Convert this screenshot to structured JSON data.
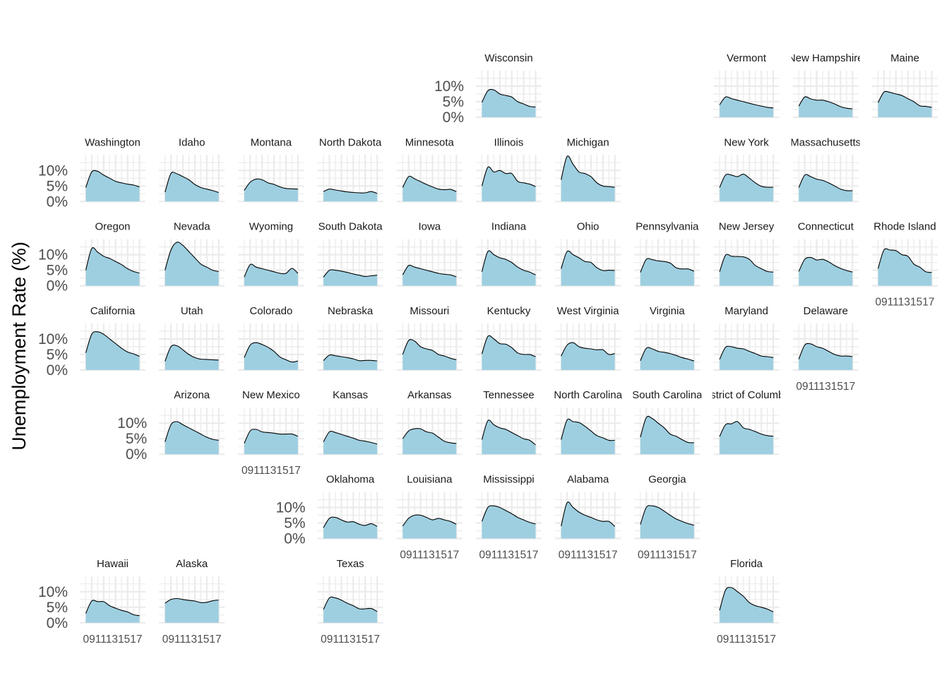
{
  "chart_data": {
    "type": "area",
    "subtype": "small-multiples-geofacet",
    "ylabel": "Unemployment Rate (%)",
    "xlabel": "",
    "y_ticks": [
      "0%",
      "5%",
      "10%"
    ],
    "ylim": [
      0,
      15
    ],
    "x_ticks": [
      "09",
      "11",
      "13",
      "15",
      "17"
    ],
    "xlim": [
      2007,
      2018
    ],
    "colors": {
      "fill": "#9ecfe0",
      "line": "#000000",
      "grid": "#ebebeb",
      "panel": "#ffffff"
    },
    "grid": true,
    "legend": "none",
    "panels": [
      {
        "name": "Wisconsin",
        "row": 0,
        "col": 5,
        "yaxis": true,
        "xaxis": false,
        "values": [
          4.8,
          8.5,
          8.8,
          7.5,
          7.0,
          6.5,
          5.0,
          4.3,
          3.5,
          3.3
        ]
      },
      {
        "name": "Vermont",
        "row": 0,
        "col": 8,
        "yaxis": false,
        "xaxis": false,
        "values": [
          4.0,
          6.5,
          6.0,
          5.5,
          5.0,
          4.5,
          4.0,
          3.6,
          3.2,
          3.0
        ]
      },
      {
        "name": "New Hampshire",
        "label": "New Hampshire",
        "row": 0,
        "col": 9,
        "yaxis": false,
        "xaxis": false,
        "values": [
          3.6,
          6.5,
          5.9,
          5.5,
          5.5,
          5.0,
          4.3,
          3.4,
          2.9,
          2.7
        ]
      },
      {
        "name": "Maine",
        "row": 0,
        "col": 10,
        "yaxis": false,
        "xaxis": false,
        "values": [
          4.7,
          8.1,
          8.0,
          7.5,
          7.0,
          6.0,
          5.0,
          3.7,
          3.5,
          3.2
        ]
      },
      {
        "name": "Washington",
        "row": 1,
        "col": 0,
        "yaxis": true,
        "xaxis": false,
        "values": [
          4.5,
          9.5,
          9.7,
          8.5,
          7.5,
          6.5,
          6.0,
          5.6,
          5.3,
          4.7
        ]
      },
      {
        "name": "Idaho",
        "row": 1,
        "col": 1,
        "yaxis": false,
        "xaxis": false,
        "values": [
          3.0,
          9.0,
          8.9,
          8.0,
          7.0,
          5.5,
          4.5,
          4.0,
          3.5,
          2.9
        ]
      },
      {
        "name": "Montana",
        "row": 1,
        "col": 2,
        "yaxis": false,
        "xaxis": false,
        "values": [
          3.6,
          6.2,
          7.2,
          7.0,
          6.0,
          5.5,
          4.7,
          4.2,
          4.1,
          4.0
        ]
      },
      {
        "name": "North Dakota",
        "row": 1,
        "col": 3,
        "yaxis": false,
        "xaxis": false,
        "values": [
          3.2,
          4.0,
          3.7,
          3.4,
          3.1,
          2.9,
          2.8,
          2.8,
          3.2,
          2.6
        ]
      },
      {
        "name": "Minnesota",
        "row": 1,
        "col": 4,
        "yaxis": false,
        "xaxis": false,
        "values": [
          4.5,
          8.0,
          7.3,
          6.4,
          5.5,
          4.7,
          4.0,
          3.8,
          3.9,
          3.2
        ]
      },
      {
        "name": "Illinois",
        "row": 1,
        "col": 5,
        "yaxis": false,
        "xaxis": false,
        "values": [
          5.0,
          11.0,
          9.5,
          10.0,
          9.0,
          9.0,
          6.5,
          6.0,
          5.6,
          4.8
        ]
      },
      {
        "name": "Michigan",
        "row": 1,
        "col": 6,
        "yaxis": false,
        "xaxis": false,
        "values": [
          7.0,
          14.5,
          12.0,
          9.5,
          9.0,
          8.0,
          6.0,
          5.0,
          4.8,
          4.6
        ]
      },
      {
        "name": "New York",
        "row": 1,
        "col": 8,
        "yaxis": false,
        "xaxis": false,
        "values": [
          4.5,
          8.5,
          8.5,
          8.0,
          8.8,
          7.5,
          6.0,
          4.9,
          4.6,
          4.6
        ]
      },
      {
        "name": "Massachusetts",
        "label": "Massachusetts",
        "row": 1,
        "col": 9,
        "yaxis": false,
        "xaxis": false,
        "values": [
          4.5,
          8.5,
          8.0,
          7.2,
          6.8,
          6.0,
          5.0,
          4.0,
          3.5,
          3.5
        ]
      },
      {
        "name": "Oregon",
        "row": 2,
        "col": 0,
        "yaxis": true,
        "xaxis": false,
        "values": [
          5.0,
          12.0,
          10.8,
          9.5,
          8.8,
          7.8,
          6.8,
          5.5,
          4.6,
          4.1
        ]
      },
      {
        "name": "Nevada",
        "row": 2,
        "col": 1,
        "yaxis": false,
        "xaxis": false,
        "values": [
          5.0,
          11.5,
          14.0,
          13.0,
          11.0,
          9.0,
          7.0,
          6.0,
          5.0,
          4.6
        ]
      },
      {
        "name": "Wyoming",
        "row": 2,
        "col": 2,
        "yaxis": false,
        "xaxis": false,
        "values": [
          2.8,
          6.8,
          6.0,
          5.5,
          5.0,
          4.5,
          4.0,
          4.0,
          5.6,
          4.0
        ]
      },
      {
        "name": "South Dakota",
        "row": 2,
        "col": 3,
        "yaxis": false,
        "xaxis": false,
        "values": [
          2.8,
          5.0,
          5.0,
          4.7,
          4.3,
          3.8,
          3.4,
          3.0,
          3.2,
          3.4
        ]
      },
      {
        "name": "Iowa",
        "row": 2,
        "col": 4,
        "yaxis": false,
        "xaxis": false,
        "values": [
          3.5,
          6.5,
          6.0,
          5.5,
          5.0,
          4.5,
          4.0,
          3.7,
          3.5,
          2.9
        ]
      },
      {
        "name": "Indiana",
        "row": 2,
        "col": 5,
        "yaxis": false,
        "xaxis": false,
        "values": [
          4.5,
          11.0,
          10.0,
          9.0,
          8.5,
          7.5,
          6.0,
          5.0,
          4.4,
          3.5
        ]
      },
      {
        "name": "Ohio",
        "row": 2,
        "col": 6,
        "yaxis": false,
        "xaxis": false,
        "values": [
          5.5,
          11.0,
          10.0,
          9.0,
          7.8,
          7.5,
          5.8,
          4.9,
          5.0,
          4.9
        ]
      },
      {
        "name": "Pennsylvania",
        "row": 2,
        "col": 7,
        "yaxis": false,
        "xaxis": false,
        "values": [
          4.3,
          8.5,
          8.4,
          8.0,
          7.8,
          7.3,
          5.8,
          5.4,
          5.4,
          4.7
        ]
      },
      {
        "name": "New Jersey",
        "row": 2,
        "col": 8,
        "yaxis": false,
        "xaxis": false,
        "values": [
          4.5,
          9.8,
          9.5,
          9.4,
          9.3,
          8.5,
          6.5,
          5.5,
          4.6,
          4.4
        ]
      },
      {
        "name": "Connecticut",
        "row": 2,
        "col": 9,
        "yaxis": false,
        "xaxis": false,
        "values": [
          4.6,
          8.5,
          9.1,
          8.3,
          8.5,
          7.7,
          6.5,
          5.6,
          4.9,
          4.4
        ]
      },
      {
        "name": "Rhode Island",
        "row": 2,
        "col": 10,
        "yaxis": false,
        "xaxis": true,
        "values": [
          5.5,
          11.5,
          11.5,
          11.3,
          10.0,
          9.5,
          7.0,
          6.0,
          4.5,
          4.3
        ]
      },
      {
        "name": "California",
        "row": 3,
        "col": 0,
        "yaxis": true,
        "xaxis": false,
        "values": [
          5.5,
          11.5,
          12.3,
          11.5,
          10.0,
          8.5,
          7.0,
          5.8,
          5.2,
          4.4
        ]
      },
      {
        "name": "Utah",
        "row": 3,
        "col": 1,
        "yaxis": false,
        "xaxis": false,
        "values": [
          2.8,
          7.5,
          7.8,
          6.5,
          5.0,
          4.0,
          3.5,
          3.4,
          3.3,
          3.2
        ]
      },
      {
        "name": "Colorado",
        "row": 3,
        "col": 2,
        "yaxis": false,
        "xaxis": false,
        "values": [
          4.0,
          8.0,
          8.8,
          8.2,
          7.3,
          6.0,
          4.2,
          3.3,
          2.6,
          2.9
        ]
      },
      {
        "name": "Nebraska",
        "row": 3,
        "col": 3,
        "yaxis": false,
        "xaxis": false,
        "values": [
          3.0,
          4.8,
          4.6,
          4.3,
          4.0,
          3.6,
          3.0,
          3.1,
          3.1,
          2.9
        ]
      },
      {
        "name": "Missouri",
        "row": 3,
        "col": 4,
        "yaxis": false,
        "xaxis": false,
        "values": [
          5.0,
          9.5,
          9.3,
          7.5,
          6.8,
          6.3,
          5.0,
          4.5,
          3.8,
          3.3
        ]
      },
      {
        "name": "Kentucky",
        "row": 3,
        "col": 5,
        "yaxis": false,
        "xaxis": false,
        "values": [
          5.2,
          10.8,
          10.0,
          8.5,
          8.3,
          7.2,
          5.5,
          5.0,
          5.0,
          4.3
        ]
      },
      {
        "name": "West Virginia",
        "row": 3,
        "col": 6,
        "yaxis": false,
        "xaxis": false,
        "values": [
          4.5,
          8.0,
          8.8,
          7.5,
          7.0,
          6.8,
          6.5,
          6.5,
          5.0,
          5.3
        ]
      },
      {
        "name": "Virginia",
        "row": 3,
        "col": 7,
        "yaxis": false,
        "xaxis": false,
        "values": [
          3.0,
          7.0,
          6.8,
          6.0,
          5.7,
          5.3,
          4.7,
          4.0,
          3.5,
          2.9
        ]
      },
      {
        "name": "Maryland",
        "row": 3,
        "col": 8,
        "yaxis": false,
        "xaxis": false,
        "values": [
          3.4,
          7.3,
          7.5,
          7.0,
          6.8,
          6.0,
          5.3,
          4.5,
          4.3,
          4.0
        ]
      },
      {
        "name": "Delaware",
        "row": 3,
        "col": 9,
        "yaxis": false,
        "xaxis": true,
        "values": [
          3.5,
          8.0,
          8.4,
          7.5,
          7.0,
          6.0,
          5.0,
          4.5,
          4.5,
          4.3
        ]
      },
      {
        "name": "Arizona",
        "row": 4,
        "col": 1,
        "yaxis": true,
        "xaxis": false,
        "values": [
          4.0,
          9.5,
          10.5,
          9.5,
          8.5,
          7.5,
          6.5,
          5.5,
          4.8,
          4.5
        ]
      },
      {
        "name": "New Mexico",
        "row": 4,
        "col": 2,
        "yaxis": false,
        "xaxis": true,
        "values": [
          3.5,
          7.5,
          8.0,
          7.2,
          7.0,
          6.8,
          6.5,
          6.5,
          6.5,
          5.8
        ]
      },
      {
        "name": "Kansas",
        "row": 4,
        "col": 3,
        "yaxis": false,
        "xaxis": false,
        "values": [
          4.0,
          7.2,
          7.0,
          6.4,
          5.8,
          5.2,
          4.5,
          4.2,
          3.8,
          3.3
        ]
      },
      {
        "name": "Arkansas",
        "row": 4,
        "col": 4,
        "yaxis": false,
        "xaxis": false,
        "values": [
          5.0,
          7.5,
          8.2,
          8.2,
          7.2,
          6.8,
          5.5,
          4.2,
          3.7,
          3.5
        ]
      },
      {
        "name": "Tennessee",
        "row": 4,
        "col": 5,
        "yaxis": false,
        "xaxis": false,
        "values": [
          4.7,
          10.8,
          9.5,
          8.5,
          8.0,
          7.0,
          6.0,
          5.0,
          4.5,
          3.0
        ]
      },
      {
        "name": "North Carolina",
        "label": "North Carolina",
        "row": 4,
        "col": 6,
        "yaxis": false,
        "xaxis": false,
        "values": [
          4.7,
          11.0,
          10.5,
          10.2,
          9.0,
          7.5,
          6.0,
          5.3,
          4.5,
          4.5
        ]
      },
      {
        "name": "South Carolina",
        "label": "South Carolina",
        "row": 4,
        "col": 7,
        "yaxis": false,
        "xaxis": false,
        "values": [
          5.5,
          11.8,
          11.5,
          10.0,
          8.5,
          6.5,
          5.8,
          4.7,
          3.8,
          3.7
        ]
      },
      {
        "name": "District of Columbia",
        "label": "District of Columbia",
        "row": 4,
        "col": 8,
        "yaxis": false,
        "xaxis": false,
        "values": [
          5.7,
          9.5,
          9.8,
          10.5,
          8.5,
          8.0,
          7.3,
          6.5,
          6.0,
          5.8
        ]
      },
      {
        "name": "Oklahoma",
        "row": 5,
        "col": 3,
        "yaxis": true,
        "xaxis": false,
        "values": [
          3.5,
          6.5,
          6.8,
          6.0,
          5.3,
          5.4,
          4.6,
          4.2,
          4.8,
          3.9
        ]
      },
      {
        "name": "Louisiana",
        "row": 5,
        "col": 4,
        "yaxis": false,
        "xaxis": true,
        "values": [
          4.0,
          6.5,
          7.5,
          7.5,
          6.8,
          6.0,
          6.5,
          6.0,
          5.5,
          4.6
        ]
      },
      {
        "name": "Mississippi",
        "row": 5,
        "col": 5,
        "yaxis": false,
        "xaxis": true,
        "values": [
          5.5,
          10.0,
          10.5,
          10.0,
          9.0,
          8.0,
          6.8,
          6.0,
          5.2,
          4.7
        ]
      },
      {
        "name": "Alabama",
        "row": 5,
        "col": 6,
        "yaxis": false,
        "xaxis": true,
        "values": [
          4.0,
          11.5,
          10.0,
          8.5,
          7.5,
          6.8,
          6.0,
          5.5,
          5.5,
          3.9
        ]
      },
      {
        "name": "Georgia",
        "row": 5,
        "col": 7,
        "yaxis": false,
        "xaxis": true,
        "values": [
          4.5,
          10.0,
          10.5,
          10.0,
          8.8,
          7.5,
          6.3,
          5.5,
          4.8,
          4.3
        ]
      },
      {
        "name": "Hawaii",
        "row": 6,
        "col": 0,
        "yaxis": true,
        "xaxis": true,
        "values": [
          3.0,
          7.0,
          6.8,
          6.8,
          5.5,
          4.7,
          4.0,
          3.5,
          2.6,
          2.3
        ]
      },
      {
        "name": "Alaska",
        "row": 6,
        "col": 1,
        "yaxis": false,
        "xaxis": true,
        "values": [
          6.3,
          7.5,
          7.8,
          7.5,
          7.2,
          7.0,
          6.5,
          6.6,
          7.1,
          7.3
        ]
      },
      {
        "name": "Texas",
        "row": 6,
        "col": 3,
        "yaxis": false,
        "xaxis": true,
        "values": [
          4.3,
          8.0,
          8.0,
          7.3,
          6.3,
          5.5,
          4.5,
          4.5,
          4.6,
          3.6
        ]
      },
      {
        "name": "Florida",
        "row": 6,
        "col": 8,
        "yaxis": false,
        "xaxis": true,
        "values": [
          4.0,
          10.5,
          11.3,
          10.0,
          8.5,
          6.5,
          5.5,
          5.0,
          4.4,
          3.5
        ]
      }
    ]
  }
}
